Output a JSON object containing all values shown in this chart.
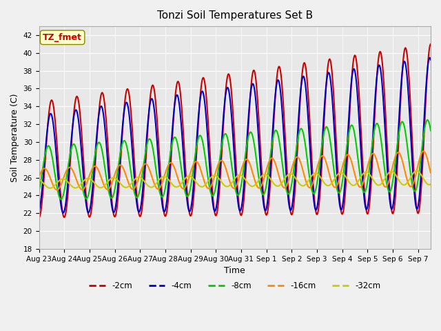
{
  "title": "Tonzi Soil Temperatures Set B",
  "xlabel": "Time",
  "ylabel": "Soil Temperature (C)",
  "ylim": [
    18,
    43
  ],
  "yticks": [
    18,
    20,
    22,
    24,
    26,
    28,
    30,
    32,
    34,
    36,
    38,
    40,
    42
  ],
  "plot_bg_color": "#e8e8e8",
  "fig_bg_color": "#f0f0f0",
  "series": [
    {
      "label": "-2cm",
      "color": "#cc0000",
      "lw": 1.5
    },
    {
      "label": "-4cm",
      "color": "#0000cc",
      "lw": 1.5
    },
    {
      "label": "-8cm",
      "color": "#00cc00",
      "lw": 1.5
    },
    {
      "label": "-16cm",
      "color": "#ff8800",
      "lw": 1.5
    },
    {
      "label": "-32cm",
      "color": "#cccc00",
      "lw": 1.5
    }
  ],
  "num_days": 15.5,
  "points_per_day": 48,
  "annotation_text": "TZ_fmet",
  "annotation_color": "#cc0000",
  "annotation_bg": "#ffffcc",
  "annotation_border": "#888800",
  "day_labels": [
    "Aug 23",
    "Aug 24",
    "Aug 25",
    "Aug 26",
    "Aug 27",
    "Aug 28",
    "Aug 29",
    "Aug 30",
    "Aug 31",
    "Sep 1",
    "Sep 2",
    "Sep 3",
    "Sep 4",
    "Sep 5",
    "Sep 6",
    "Sep 7"
  ]
}
